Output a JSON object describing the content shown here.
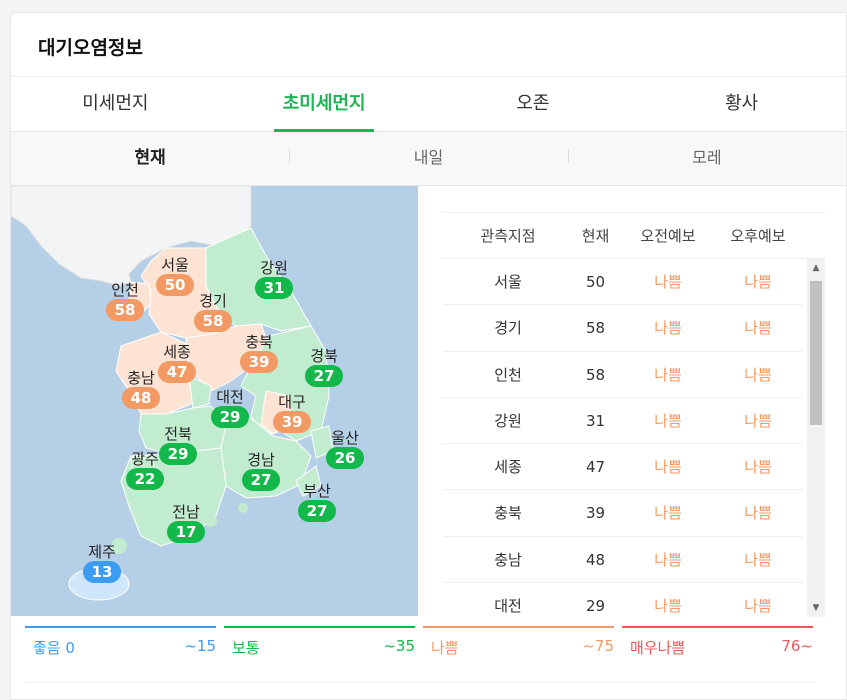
{
  "title": "대기오염정보",
  "tabs": [
    {
      "label": "미세먼지",
      "active": false
    },
    {
      "label": "초미세먼지",
      "active": true
    },
    {
      "label": "오존",
      "active": false
    },
    {
      "label": "황사",
      "active": false
    }
  ],
  "subtabs": [
    {
      "label": "현재",
      "active": true
    },
    {
      "label": "내일",
      "active": false
    },
    {
      "label": "모레",
      "active": false
    }
  ],
  "colors": {
    "good": "#3b9cf2",
    "normal": "#12b84a",
    "bad": "#f39a64",
    "verybad": "#e85a5a",
    "accent": "#1db554"
  },
  "map": {
    "regions": [
      {
        "id": "seoul",
        "name": "서울",
        "value": "50",
        "level": "bad"
      },
      {
        "id": "incheon",
        "name": "인천",
        "value": "58",
        "level": "bad"
      },
      {
        "id": "gyeonggi",
        "name": "경기",
        "value": "58",
        "level": "bad"
      },
      {
        "id": "gangwon",
        "name": "강원",
        "value": "31",
        "level": "normal"
      },
      {
        "id": "sejong",
        "name": "세종",
        "value": "47",
        "level": "bad"
      },
      {
        "id": "chungbuk",
        "name": "충북",
        "value": "39",
        "level": "bad"
      },
      {
        "id": "chungnam",
        "name": "충남",
        "value": "48",
        "level": "bad"
      },
      {
        "id": "daejeon",
        "name": "대전",
        "value": "29",
        "level": "normal"
      },
      {
        "id": "gyeongbuk",
        "name": "경북",
        "value": "27",
        "level": "normal"
      },
      {
        "id": "daegu",
        "name": "대구",
        "value": "39",
        "level": "bad"
      },
      {
        "id": "jeonbuk",
        "name": "전북",
        "value": "29",
        "level": "normal"
      },
      {
        "id": "ulsan",
        "name": "울산",
        "value": "26",
        "level": "normal"
      },
      {
        "id": "gwangju",
        "name": "광주",
        "value": "22",
        "level": "normal"
      },
      {
        "id": "gyeongnam",
        "name": "경남",
        "value": "27",
        "level": "normal"
      },
      {
        "id": "busan",
        "name": "부산",
        "value": "27",
        "level": "normal"
      },
      {
        "id": "jeonnam",
        "name": "전남",
        "value": "17",
        "level": "normal"
      },
      {
        "id": "jeju",
        "name": "제주",
        "value": "13",
        "level": "good"
      }
    ]
  },
  "table": {
    "headers": [
      "관측지점",
      "현재",
      "오전예보",
      "오후예보"
    ],
    "rows": [
      {
        "station": "서울",
        "current": "50",
        "am": "나쁨",
        "pm": "나쁨"
      },
      {
        "station": "경기",
        "current": "58",
        "am": "나쁨",
        "pm": "나쁨"
      },
      {
        "station": "인천",
        "current": "58",
        "am": "나쁨",
        "pm": "나쁨"
      },
      {
        "station": "강원",
        "current": "31",
        "am": "나쁨",
        "pm": "나쁨"
      },
      {
        "station": "세종",
        "current": "47",
        "am": "나쁨",
        "pm": "나쁨"
      },
      {
        "station": "충북",
        "current": "39",
        "am": "나쁨",
        "pm": "나쁨"
      },
      {
        "station": "충남",
        "current": "48",
        "am": "나쁨",
        "pm": "나쁨"
      },
      {
        "station": "대전",
        "current": "29",
        "am": "나쁨",
        "pm": "나쁨"
      }
    ]
  },
  "legend": [
    {
      "label": "좋음",
      "min": "0",
      "max": "~15",
      "level": "good"
    },
    {
      "label": "보통",
      "min": "",
      "max": "~35",
      "level": "normal"
    },
    {
      "label": "나쁨",
      "min": "",
      "max": "~75",
      "level": "bad"
    },
    {
      "label": "매우나쁨",
      "min": "",
      "max": "76~",
      "level": "verybad"
    }
  ]
}
